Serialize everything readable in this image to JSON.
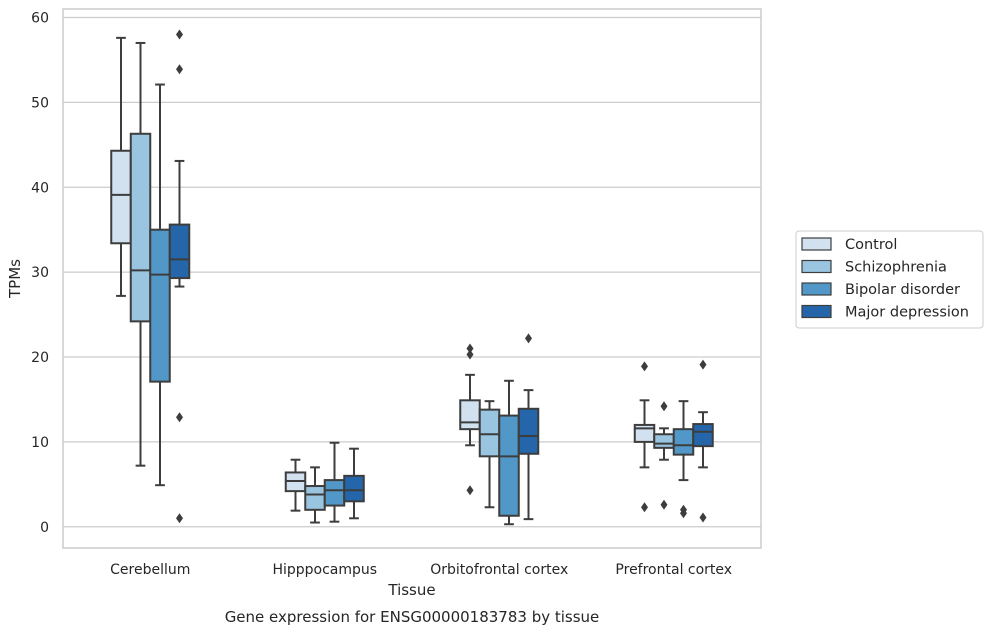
{
  "chart_data": {
    "type": "box",
    "title": "",
    "caption": "Gene expression for ENSG00000183783 by tissue",
    "xlabel": "Tissue",
    "ylabel": "TPMs",
    "ylim": [
      -2.5,
      61
    ],
    "yticks": [
      0,
      10,
      20,
      30,
      40,
      50,
      60
    ],
    "grid": "horizontal",
    "legend_position": "right",
    "categories": [
      "Cerebellum",
      "Hipppocampus",
      "Orbitofrontal cortex",
      "Prefrontal cortex"
    ],
    "series": [
      {
        "name": "Control",
        "color": "#d1e1f0",
        "boxes": [
          {
            "whisker_low": 27.2,
            "q1": 33.4,
            "median": 39.1,
            "q3": 44.3,
            "whisker_high": 57.6,
            "outliers": []
          },
          {
            "whisker_low": 1.9,
            "q1": 4.2,
            "median": 5.4,
            "q3": 6.4,
            "whisker_high": 7.9,
            "outliers": []
          },
          {
            "whisker_low": 9.6,
            "q1": 11.5,
            "median": 12.3,
            "q3": 14.9,
            "whisker_high": 17.9,
            "outliers": [
              4.3,
              20.3,
              21.0
            ]
          },
          {
            "whisker_low": 7.0,
            "q1": 10.0,
            "median": 11.6,
            "q3": 12.0,
            "whisker_high": 14.9,
            "outliers": [
              2.3,
              18.9
            ]
          }
        ]
      },
      {
        "name": "Schizophrenia",
        "color": "#9ac5e0",
        "boxes": [
          {
            "whisker_low": 7.2,
            "q1": 24.2,
            "median": 30.2,
            "q3": 46.3,
            "whisker_high": 57.0,
            "outliers": []
          },
          {
            "whisker_low": 0.5,
            "q1": 2.0,
            "median": 3.8,
            "q3": 4.8,
            "whisker_high": 7.0,
            "outliers": []
          },
          {
            "whisker_low": 2.3,
            "q1": 8.3,
            "median": 10.9,
            "q3": 13.8,
            "whisker_high": 14.8,
            "outliers": []
          },
          {
            "whisker_low": 7.9,
            "q1": 9.3,
            "median": 9.8,
            "q3": 10.9,
            "whisker_high": 11.6,
            "outliers": [
              2.6,
              14.2
            ]
          }
        ]
      },
      {
        "name": "Bipolar disorder",
        "color": "#5198c9",
        "boxes": [
          {
            "whisker_low": 4.9,
            "q1": 17.1,
            "median": 29.7,
            "q3": 35.0,
            "whisker_high": 52.1,
            "outliers": []
          },
          {
            "whisker_low": 0.6,
            "q1": 2.5,
            "median": 4.3,
            "q3": 5.5,
            "whisker_high": 9.9,
            "outliers": []
          },
          {
            "whisker_low": 0.3,
            "q1": 1.3,
            "median": 8.3,
            "q3": 13.1,
            "whisker_high": 17.2,
            "outliers": []
          },
          {
            "whisker_low": 5.5,
            "q1": 8.5,
            "median": 9.6,
            "q3": 11.5,
            "whisker_high": 14.8,
            "outliers": [
              1.6,
              2.0
            ]
          }
        ]
      },
      {
        "name": "Major depression",
        "color": "#2466a9",
        "boxes": [
          {
            "whisker_low": 28.3,
            "q1": 29.3,
            "median": 31.5,
            "q3": 35.6,
            "whisker_high": 43.1,
            "outliers": [
              1.0,
              12.9,
              53.9,
              58.0
            ]
          },
          {
            "whisker_low": 1.0,
            "q1": 3.0,
            "median": 4.3,
            "q3": 6.0,
            "whisker_high": 9.2,
            "outliers": []
          },
          {
            "whisker_low": 0.9,
            "q1": 8.6,
            "median": 10.7,
            "q3": 13.9,
            "whisker_high": 16.1,
            "outliers": [
              22.2
            ]
          },
          {
            "whisker_low": 7.0,
            "q1": 9.5,
            "median": 11.2,
            "q3": 12.1,
            "whisker_high": 13.5,
            "outliers": [
              1.1,
              19.1
            ]
          }
        ]
      }
    ]
  }
}
